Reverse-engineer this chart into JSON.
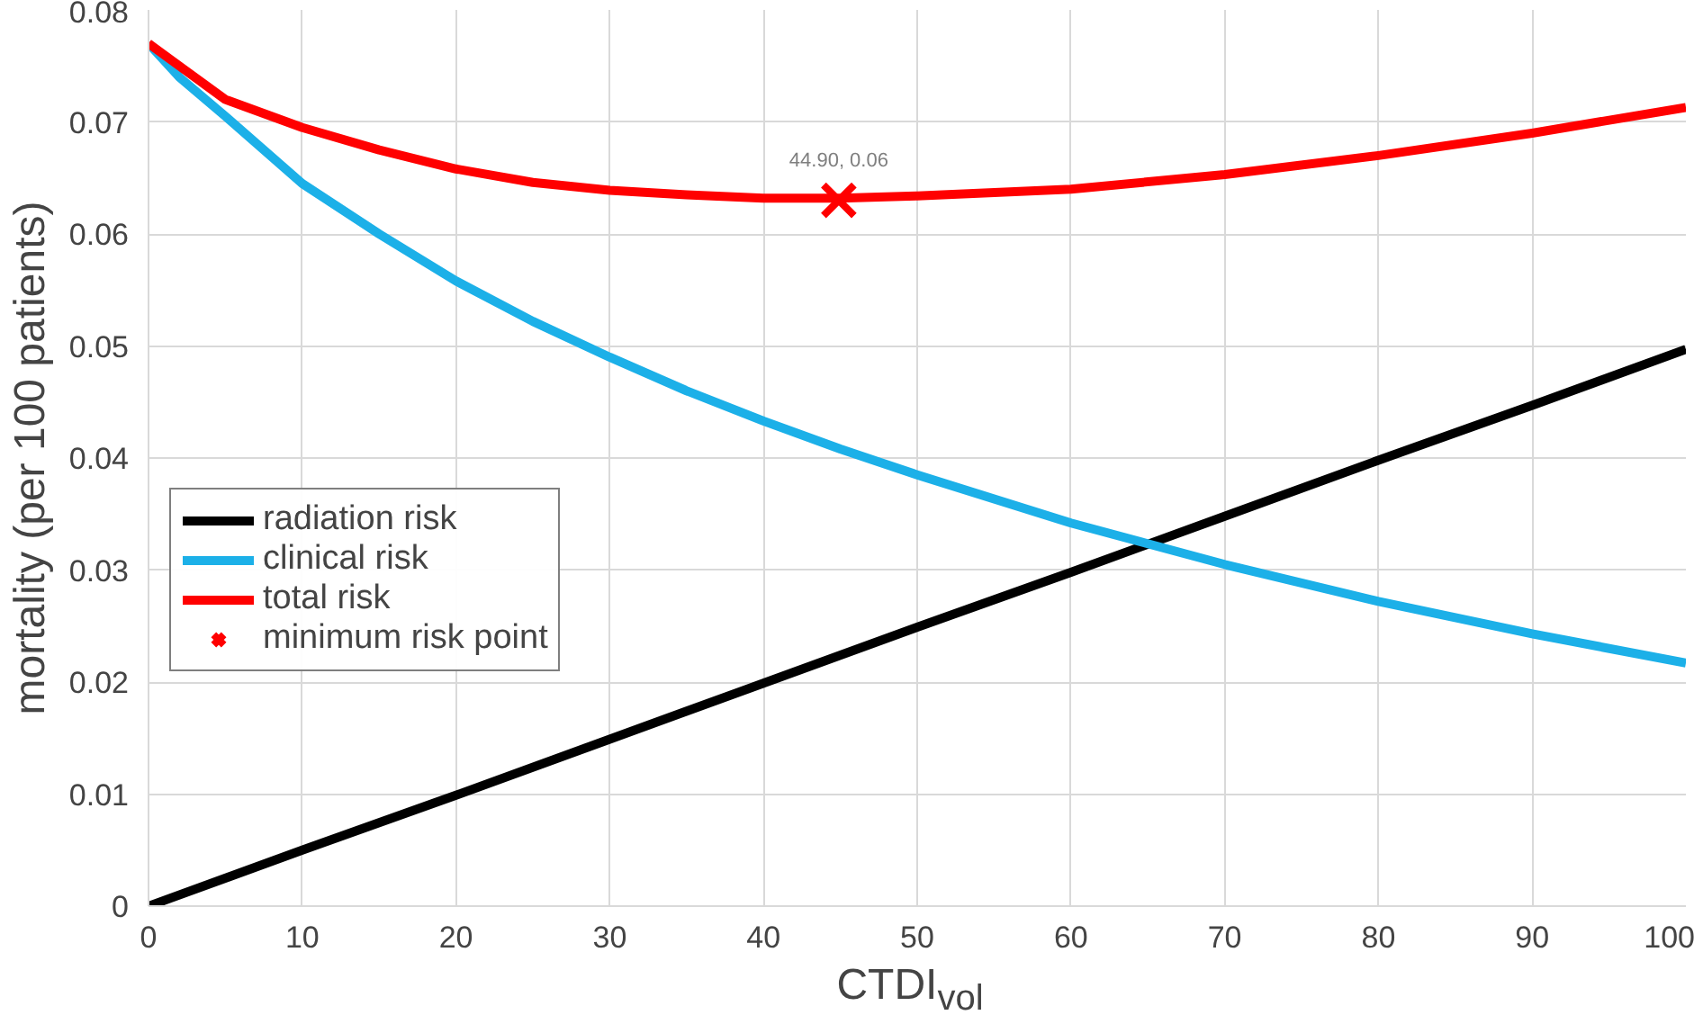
{
  "chart_data": {
    "type": "line",
    "xlabel": "CTDI$_{vol}$",
    "ylabel": "mortality (per 100 patients)",
    "xlim": [
      0,
      100
    ],
    "ylim": [
      0,
      0.08
    ],
    "xticks": [
      0,
      10,
      20,
      30,
      40,
      50,
      60,
      70,
      80,
      90,
      100
    ],
    "yticks": [
      0,
      0.01,
      0.02,
      0.03,
      0.04,
      0.05,
      0.06,
      0.07,
      0.08
    ],
    "grid": true,
    "legend": "left",
    "line_style": "solid",
    "annotations": [
      {
        "text": "44.90, 0.06",
        "x": 44.9,
        "y": 0.063
      }
    ],
    "series": [
      {
        "name": "radiation risk",
        "color": "#000000",
        "x": [
          0,
          10,
          20,
          30,
          40,
          50,
          60,
          70,
          80,
          90,
          100
        ],
        "values": [
          0,
          0.005,
          0.0099,
          0.0149,
          0.0199,
          0.0249,
          0.0298,
          0.0348,
          0.0398,
          0.0447,
          0.0497
        ]
      },
      {
        "name": "clinical risk",
        "color": "#1cb0e8",
        "x": [
          0,
          2,
          5,
          10,
          15,
          20,
          25,
          30,
          35,
          40,
          45,
          50,
          60,
          70,
          80,
          90,
          100
        ],
        "values": [
          0.077,
          0.074,
          0.0705,
          0.0645,
          0.06,
          0.0558,
          0.0522,
          0.049,
          0.046,
          0.0433,
          0.0408,
          0.0385,
          0.0342,
          0.0305,
          0.0272,
          0.0243,
          0.0217
        ]
      },
      {
        "name": "total risk",
        "color": "#ff0000",
        "x": [
          0,
          2,
          5,
          10,
          15,
          20,
          25,
          30,
          35,
          40,
          45,
          50,
          60,
          70,
          80,
          90,
          100
        ],
        "values": [
          0.077,
          0.075,
          0.072,
          0.0695,
          0.0675,
          0.0658,
          0.0646,
          0.0639,
          0.0635,
          0.0632,
          0.0632,
          0.0634,
          0.064,
          0.0653,
          0.067,
          0.069,
          0.0713
        ]
      },
      {
        "name": "minimum risk point",
        "type": "scatter",
        "marker": "cross",
        "color": "#ff0000",
        "x": [
          44.9
        ],
        "values": [
          0.063
        ]
      }
    ]
  }
}
